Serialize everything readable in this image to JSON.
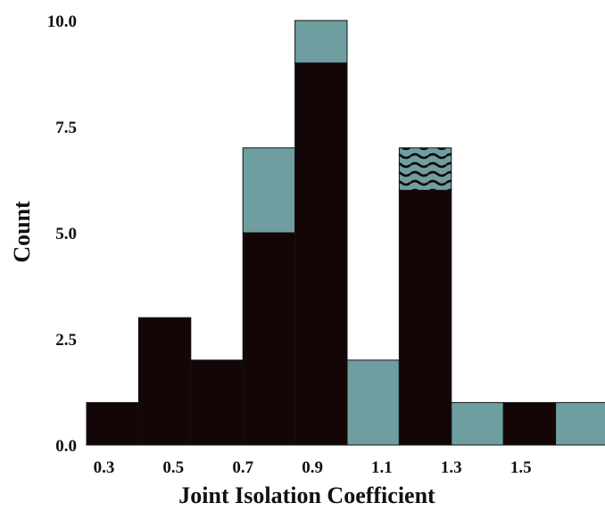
{
  "chart_data": {
    "type": "bar",
    "subtype": "stacked-histogram",
    "title": "",
    "xlabel": "Joint Isolation Coefficient",
    "ylabel": "Count",
    "xlim": [
      0.25,
      1.75
    ],
    "ylim": [
      0,
      10
    ],
    "x_ticks": [
      "0.3",
      "0.5",
      "0.7",
      "0.9",
      "1.1",
      "1.3",
      "1.5"
    ],
    "y_ticks": [
      "0.0",
      "2.5",
      "5.0",
      "7.5",
      "10.0"
    ],
    "grid": false,
    "legend": "none",
    "bin_edges": [
      0.25,
      0.4,
      0.55,
      0.7,
      0.85,
      1.0,
      1.15,
      1.3,
      1.45,
      1.6,
      1.75
    ],
    "series": [
      {
        "color": "#140607",
        "pattern": "solid",
        "values": [
          1,
          3,
          2,
          5,
          9,
          0,
          6,
          0,
          1,
          0
        ]
      },
      {
        "color": "#6e9ea0",
        "pattern": "solid",
        "values": [
          0,
          0,
          0,
          2,
          1,
          2,
          0,
          1,
          0,
          1
        ]
      },
      {
        "color": "#6e9ea0",
        "pattern": "wavy",
        "values": [
          0,
          0,
          0,
          0,
          0,
          0,
          1,
          0,
          0,
          0
        ]
      }
    ]
  }
}
